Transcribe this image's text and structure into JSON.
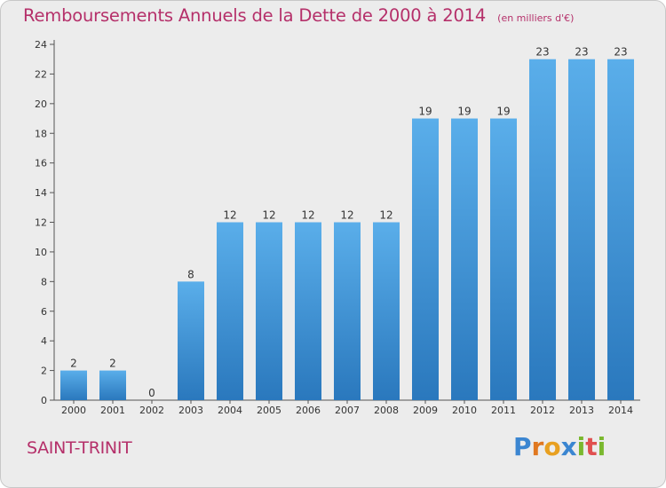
{
  "chart_data": {
    "type": "bar",
    "title": "Remboursements Annuels de la Dette de 2000 à 2014",
    "units": "(en milliers d'€)",
    "categories": [
      "2000",
      "2001",
      "2002",
      "2003",
      "2004",
      "2005",
      "2006",
      "2007",
      "2008",
      "2009",
      "2010",
      "2011",
      "2012",
      "2013",
      "2014"
    ],
    "values": [
      2,
      2,
      0,
      8,
      12,
      12,
      12,
      12,
      12,
      19,
      19,
      19,
      23,
      23,
      23
    ],
    "ylim": [
      0,
      24
    ],
    "yticks": [
      0,
      2,
      4,
      6,
      8,
      10,
      12,
      14,
      16,
      18,
      20,
      22,
      24
    ],
    "grid": false,
    "bar_color": "#3d8fd6"
  },
  "commune": "SAINT-TRINIT",
  "logo": {
    "letters": [
      "P",
      "r",
      "o",
      "x",
      "i",
      "t",
      "i"
    ],
    "colors": [
      "#3b86d1",
      "#e07820",
      "#e8a020",
      "#3b86d1",
      "#7ab82e",
      "#e05050",
      "#7ab82e"
    ]
  }
}
